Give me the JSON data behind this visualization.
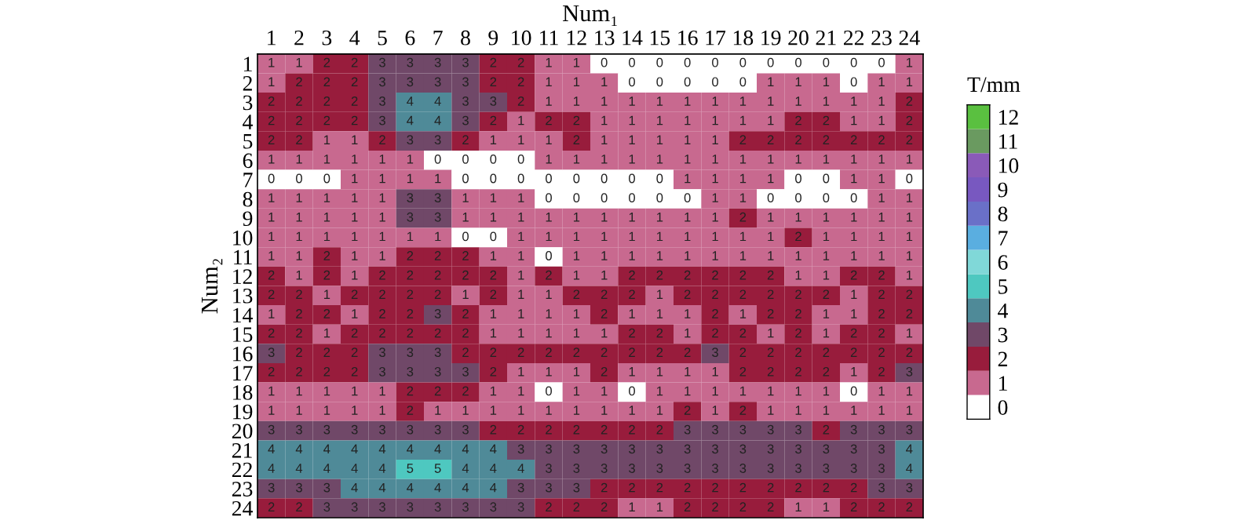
{
  "chart_data": {
    "type": "heatmap",
    "xlabel": "Num₁",
    "ylabel": "Num₂",
    "clabel": "T/mm",
    "categories": [
      "1",
      "2",
      "3",
      "4",
      "5",
      "6",
      "7",
      "8",
      "9",
      "10",
      "11",
      "12",
      "13",
      "14",
      "15",
      "16",
      "17",
      "18",
      "19",
      "20",
      "21",
      "22",
      "23",
      "24"
    ],
    "y_categories": [
      "1",
      "2",
      "3",
      "4",
      "5",
      "6",
      "7",
      "8",
      "9",
      "10",
      "11",
      "12",
      "13",
      "14",
      "15",
      "16",
      "17",
      "18",
      "19",
      "20",
      "21",
      "22",
      "23",
      "24"
    ],
    "cells": [
      [
        1,
        1,
        2,
        2,
        3,
        3,
        3,
        3,
        2,
        2,
        1,
        1,
        0,
        0,
        0,
        0,
        0,
        0,
        0,
        0,
        0,
        0,
        0,
        1
      ],
      [
        1,
        2,
        2,
        2,
        3,
        3,
        3,
        3,
        2,
        2,
        1,
        1,
        1,
        0,
        0,
        0,
        0,
        0,
        1,
        1,
        1,
        0,
        1,
        1
      ],
      [
        2,
        2,
        2,
        2,
        3,
        4,
        4,
        3,
        3,
        2,
        1,
        1,
        1,
        1,
        1,
        1,
        1,
        1,
        1,
        1,
        1,
        1,
        1,
        2
      ],
      [
        2,
        2,
        2,
        2,
        3,
        4,
        4,
        3,
        2,
        1,
        2,
        2,
        1,
        1,
        1,
        1,
        1,
        1,
        1,
        2,
        2,
        1,
        1,
        2
      ],
      [
        2,
        2,
        1,
        1,
        2,
        3,
        3,
        2,
        1,
        1,
        1,
        2,
        1,
        1,
        1,
        1,
        1,
        2,
        2,
        2,
        2,
        2,
        2,
        2
      ],
      [
        1,
        1,
        1,
        1,
        1,
        1,
        0,
        0,
        0,
        0,
        1,
        1,
        1,
        1,
        1,
        1,
        1,
        1,
        1,
        1,
        1,
        1,
        1,
        1
      ],
      [
        0,
        0,
        0,
        1,
        1,
        1,
        1,
        0,
        0,
        0,
        0,
        0,
        0,
        0,
        0,
        1,
        1,
        1,
        1,
        0,
        0,
        1,
        1,
        0
      ],
      [
        1,
        1,
        1,
        1,
        1,
        3,
        3,
        1,
        1,
        1,
        0,
        0,
        0,
        0,
        0,
        0,
        1,
        1,
        0,
        0,
        0,
        0,
        1,
        1
      ],
      [
        1,
        1,
        1,
        1,
        1,
        3,
        3,
        1,
        1,
        1,
        1,
        1,
        1,
        1,
        1,
        1,
        1,
        2,
        1,
        1,
        1,
        1,
        1,
        1
      ],
      [
        1,
        1,
        1,
        1,
        1,
        1,
        1,
        0,
        0,
        1,
        1,
        1,
        1,
        1,
        1,
        1,
        1,
        1,
        1,
        2,
        1,
        1,
        1,
        1
      ],
      [
        1,
        1,
        2,
        1,
        1,
        2,
        2,
        2,
        1,
        1,
        0,
        1,
        1,
        1,
        1,
        1,
        1,
        1,
        1,
        1,
        1,
        1,
        1,
        1
      ],
      [
        2,
        1,
        2,
        1,
        2,
        2,
        2,
        2,
        2,
        1,
        2,
        1,
        1,
        2,
        2,
        2,
        2,
        2,
        2,
        1,
        1,
        2,
        2,
        1
      ],
      [
        2,
        2,
        1,
        2,
        2,
        2,
        2,
        1,
        2,
        1,
        1,
        2,
        2,
        2,
        1,
        2,
        2,
        2,
        2,
        2,
        2,
        1,
        2,
        2
      ],
      [
        1,
        2,
        2,
        1,
        2,
        2,
        3,
        2,
        1,
        1,
        1,
        1,
        2,
        1,
        1,
        1,
        2,
        1,
        2,
        2,
        1,
        1,
        2,
        2
      ],
      [
        2,
        2,
        1,
        2,
        2,
        2,
        2,
        2,
        1,
        1,
        1,
        1,
        1,
        2,
        2,
        1,
        2,
        2,
        1,
        2,
        1,
        2,
        2,
        1
      ],
      [
        3,
        2,
        2,
        2,
        3,
        3,
        3,
        2,
        2,
        2,
        2,
        2,
        2,
        2,
        2,
        2,
        3,
        2,
        2,
        2,
        2,
        2,
        2,
        2
      ],
      [
        2,
        2,
        2,
        2,
        3,
        3,
        3,
        3,
        2,
        1,
        1,
        1,
        2,
        1,
        1,
        1,
        1,
        2,
        2,
        2,
        2,
        1,
        2,
        3
      ],
      [
        1,
        1,
        1,
        1,
        1,
        2,
        2,
        2,
        1,
        1,
        0,
        1,
        1,
        0,
        1,
        1,
        1,
        1,
        1,
        1,
        1,
        0,
        1,
        1
      ],
      [
        1,
        1,
        1,
        1,
        1,
        2,
        1,
        1,
        1,
        1,
        1,
        1,
        1,
        1,
        1,
        2,
        1,
        2,
        1,
        1,
        1,
        1,
        1,
        1
      ],
      [
        3,
        3,
        3,
        3,
        3,
        3,
        3,
        3,
        2,
        2,
        2,
        2,
        2,
        2,
        2,
        3,
        3,
        3,
        3,
        3,
        2,
        3,
        3,
        3
      ],
      [
        4,
        4,
        4,
        4,
        4,
        4,
        4,
        4,
        4,
        3,
        3,
        3,
        3,
        3,
        3,
        3,
        3,
        3,
        3,
        3,
        3,
        3,
        3,
        4
      ],
      [
        4,
        4,
        4,
        4,
        4,
        5,
        5,
        4,
        4,
        4,
        3,
        3,
        3,
        3,
        3,
        3,
        3,
        3,
        3,
        3,
        3,
        3,
        3,
        4
      ],
      [
        3,
        3,
        3,
        4,
        4,
        4,
        4,
        4,
        4,
        3,
        3,
        3,
        2,
        2,
        2,
        2,
        2,
        2,
        2,
        2,
        2,
        2,
        3,
        3
      ],
      [
        2,
        2,
        3,
        3,
        3,
        3,
        3,
        3,
        3,
        3,
        2,
        2,
        2,
        1,
        1,
        2,
        2,
        2,
        2,
        1,
        1,
        2,
        2,
        2
      ]
    ],
    "colors": [
      "#ffffff",
      "#c8698f",
      "#981c3c",
      "#704868",
      "#4f8a98",
      "#4ec8c0",
      "#80d8d8",
      "#5aaee0",
      "#6a70c8",
      "#7858c0",
      "#8a5ab8",
      "#6a9a60",
      "#5ac040"
    ],
    "clim": [
      -0.5,
      12.5
    ],
    "cticks": [
      0,
      1,
      2,
      3,
      4,
      5,
      6,
      7,
      8,
      9,
      10,
      11,
      12
    ],
    "data_labels": true
  }
}
